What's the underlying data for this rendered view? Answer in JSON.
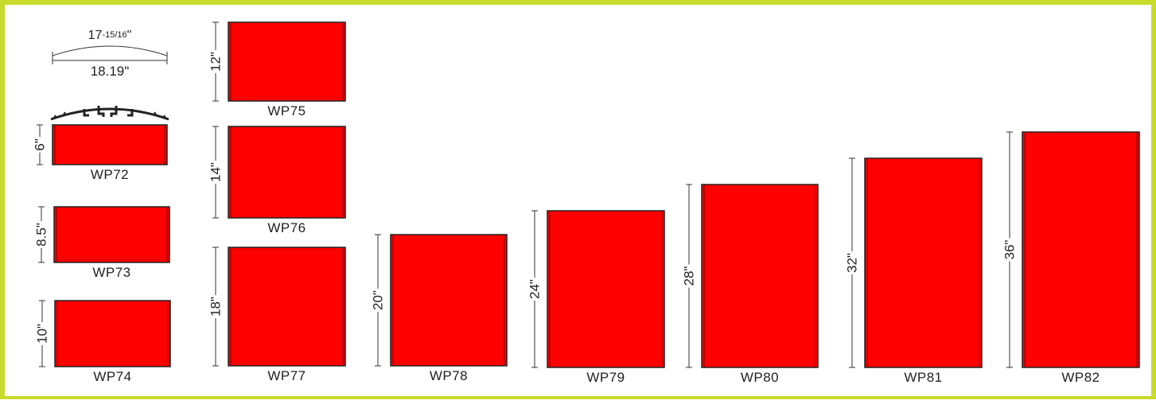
{
  "colors": {
    "border": "#c8da2b",
    "panel_fill": "#ff0000",
    "panel_edge": "#222222",
    "line": "#333333"
  },
  "profile": {
    "arc_whole": "17",
    "arc_fraction": "-15/16",
    "arc_unit": "\"",
    "chord_dimension": "18.19\"",
    "icon": "extrusion-profile-icon"
  },
  "panels": [
    {
      "model": "WP72",
      "height_label": "6\"",
      "height_in": 6
    },
    {
      "model": "WP73",
      "height_label": "8.5\"",
      "height_in": 8.5
    },
    {
      "model": "WP74",
      "height_label": "10\"",
      "height_in": 10
    },
    {
      "model": "WP75",
      "height_label": "12\"",
      "height_in": 12
    },
    {
      "model": "WP76",
      "height_label": "14\"",
      "height_in": 14
    },
    {
      "model": "WP77",
      "height_label": "18\"",
      "height_in": 18
    },
    {
      "model": "WP78",
      "height_label": "20\"",
      "height_in": 20
    },
    {
      "model": "WP79",
      "height_label": "24\"",
      "height_in": 24
    },
    {
      "model": "WP80",
      "height_label": "28\"",
      "height_in": 28
    },
    {
      "model": "WP81",
      "height_label": "32\"",
      "height_in": 32
    },
    {
      "model": "WP82",
      "height_label": "36\"",
      "height_in": 36
    }
  ]
}
